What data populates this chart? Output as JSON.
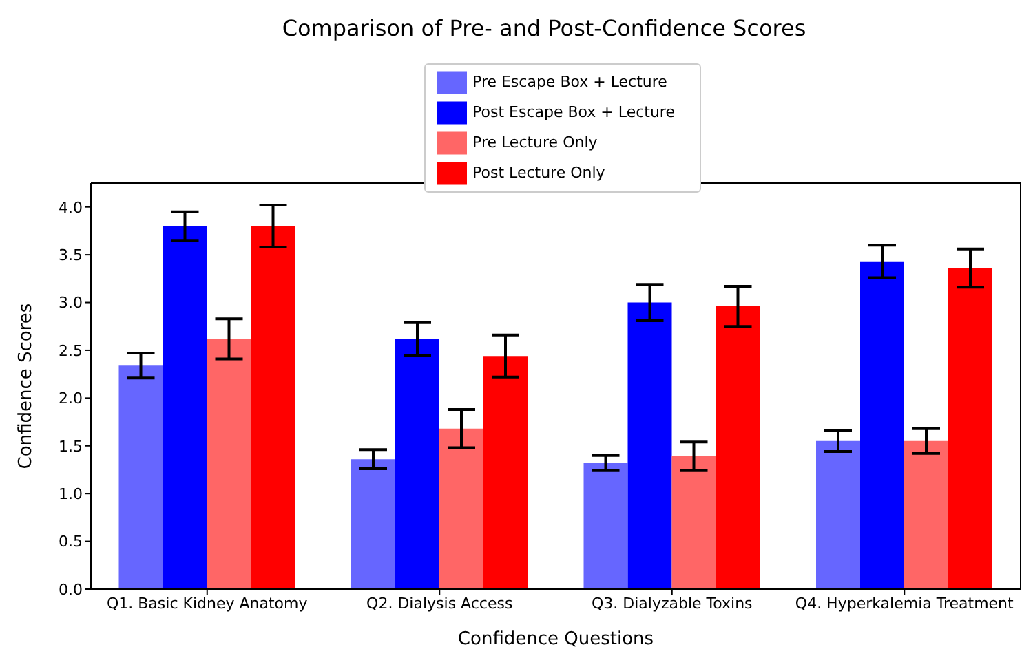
{
  "chart_data": {
    "type": "bar",
    "title": "Comparison of Pre- and Post-Confidence Scores",
    "xlabel": "Confidence Questions",
    "ylabel": "Confidence Scores",
    "categories": [
      "Q1. Basic Kidney Anatomy",
      "Q2. Dialysis Access",
      "Q3. Dialyzable Toxins",
      "Q4. Hyperkalemia Treatment"
    ],
    "series": [
      {
        "name": "Pre Escape Box + Lecture",
        "color": "#6666ff",
        "values": [
          2.34,
          1.36,
          1.32,
          1.55
        ],
        "errors": [
          0.13,
          0.1,
          0.08,
          0.11
        ]
      },
      {
        "name": "Post Escape Box + Lecture",
        "color": "#0000ff",
        "values": [
          3.8,
          2.62,
          3.0,
          3.43
        ],
        "errors": [
          0.15,
          0.17,
          0.19,
          0.17
        ]
      },
      {
        "name": "Pre Lecture Only",
        "color": "#ff6666",
        "values": [
          2.62,
          1.68,
          1.39,
          1.55
        ],
        "errors": [
          0.21,
          0.2,
          0.15,
          0.13
        ]
      },
      {
        "name": "Post Lecture Only",
        "color": "#ff0000",
        "values": [
          3.8,
          2.44,
          2.96,
          3.36
        ],
        "errors": [
          0.22,
          0.22,
          0.21,
          0.2
        ]
      }
    ],
    "ylim": [
      0,
      4.25
    ],
    "yticks": [
      {
        "value": 0,
        "label": "0.0"
      },
      {
        "value": 0.5,
        "label": "0.5"
      },
      {
        "value": 1,
        "label": "1.0"
      },
      {
        "value": 1.5,
        "label": "1.5"
      },
      {
        "value": 2,
        "label": "2.0"
      },
      {
        "value": 2.5,
        "label": "2.5"
      },
      {
        "value": 3,
        "label": "3.0"
      },
      {
        "value": 3.5,
        "label": "3.5"
      },
      {
        "value": 4,
        "label": "4.0"
      }
    ],
    "grid": false,
    "legend": "top"
  }
}
